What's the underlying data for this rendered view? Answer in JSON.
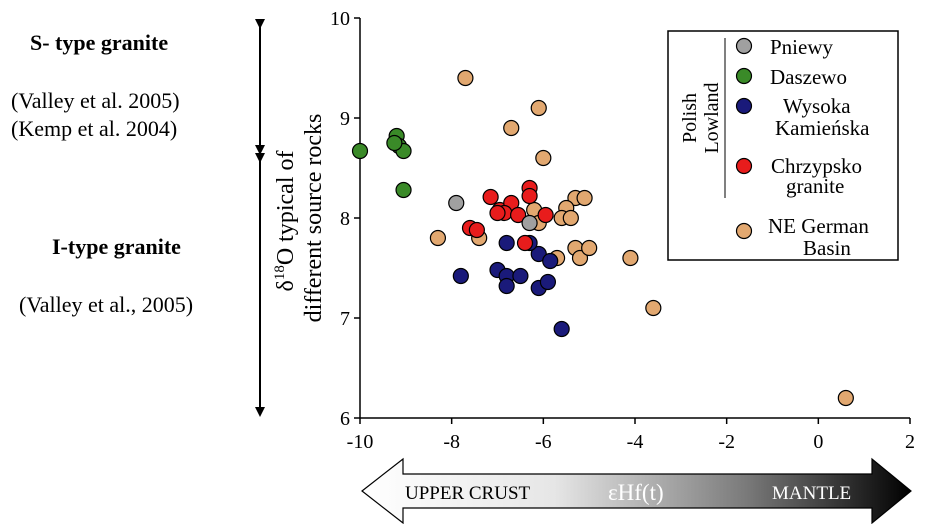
{
  "left_panel": {
    "s_type_title": "S- type granite",
    "s_type_ref1": "(Valley et al. 2005)",
    "s_type_ref2": "(Kemp et al. 2004)",
    "i_type_title": "I-type granite",
    "i_type_ref1": "(Valley et al., 2005)"
  },
  "bottom_arrow": {
    "left_label": "UPPER CRUST",
    "center_label": "εHf(t)",
    "right_label": "MANTLE"
  },
  "chart_data": {
    "type": "scatter",
    "xlabel": "εHf(t)",
    "ylabel_line1": "δ18O typical of",
    "ylabel_line2": "different source rocks",
    "xlim": [
      -10,
      2
    ],
    "ylim": [
      6,
      10
    ],
    "x_ticks": [
      "-10",
      "-8",
      "-6",
      "-4",
      "-2",
      "0",
      "2"
    ],
    "y_ticks": [
      "6",
      "7",
      "8",
      "9",
      "10"
    ],
    "legend_placement": "top-right",
    "legend_group_label": "Polish Lowland",
    "series": [
      {
        "name": "Pniewy",
        "color": "#a0a0a0",
        "points": [
          [
            -7.9,
            8.15
          ],
          [
            -6.3,
            7.95
          ]
        ]
      },
      {
        "name": "Daszewo",
        "color": "#3a8a28",
        "points": [
          [
            -9.2,
            8.82
          ],
          [
            -9.15,
            8.72
          ],
          [
            -9.05,
            8.67
          ],
          [
            -10.0,
            8.67
          ],
          [
            -9.05,
            8.28
          ],
          [
            -9.25,
            8.75
          ]
        ]
      },
      {
        "name": "Wysoka Kamieńska",
        "color": "#1a1a7a",
        "points": [
          [
            -7.8,
            7.42
          ],
          [
            -7.0,
            7.48
          ],
          [
            -6.8,
            7.42
          ],
          [
            -6.8,
            7.32
          ],
          [
            -6.5,
            7.42
          ],
          [
            -6.1,
            7.3
          ],
          [
            -5.9,
            7.36
          ],
          [
            -6.1,
            7.64
          ],
          [
            -5.85,
            7.57
          ],
          [
            -6.8,
            7.75
          ],
          [
            -6.3,
            7.75
          ],
          [
            -5.6,
            6.89
          ]
        ]
      },
      {
        "name": "Chrzypsko granite",
        "color": "#e81c1c",
        "points": [
          [
            -7.15,
            8.21
          ],
          [
            -6.95,
            8.08
          ],
          [
            -6.7,
            8.15
          ],
          [
            -6.85,
            8.05
          ],
          [
            -6.55,
            8.03
          ],
          [
            -6.3,
            8.3
          ],
          [
            -6.3,
            8.22
          ],
          [
            -5.95,
            8.03
          ],
          [
            -7.6,
            7.9
          ],
          [
            -7.45,
            7.88
          ],
          [
            -6.4,
            7.75
          ],
          [
            -7.0,
            8.05
          ]
        ]
      },
      {
        "name": "NE German Basin",
        "color": "#e2a870",
        "points": [
          [
            -7.7,
            9.4
          ],
          [
            -6.1,
            9.1
          ],
          [
            -6.7,
            8.9
          ],
          [
            -6.0,
            8.6
          ],
          [
            -5.3,
            8.2
          ],
          [
            -5.1,
            8.2
          ],
          [
            -5.5,
            8.1
          ],
          [
            -5.6,
            8.0
          ],
          [
            -5.4,
            8.0
          ],
          [
            -6.2,
            8.08
          ],
          [
            -6.1,
            7.95
          ],
          [
            -8.3,
            7.8
          ],
          [
            -7.4,
            7.8
          ],
          [
            -5.7,
            7.6
          ],
          [
            -5.3,
            7.7
          ],
          [
            -5.2,
            7.6
          ],
          [
            -5.0,
            7.7
          ],
          [
            -4.1,
            7.6
          ],
          [
            -3.6,
            7.1
          ],
          [
            0.6,
            6.2
          ]
        ]
      }
    ]
  }
}
